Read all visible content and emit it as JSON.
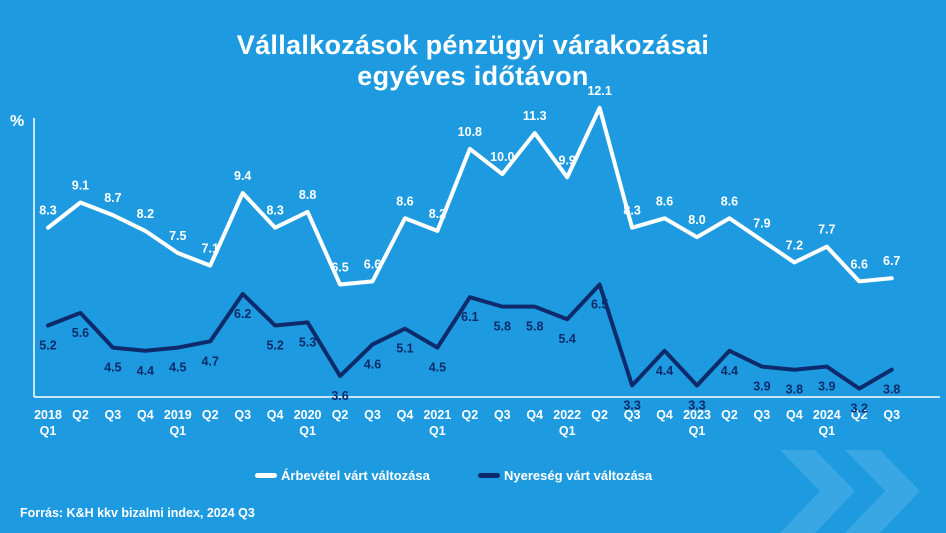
{
  "header": {
    "title_line1": "Vállalkozások pénzügyi várakozásai",
    "title_line2": "egyéves időtávon"
  },
  "source": "Forrás: K&H kkv bizalmi index, 2024 Q3",
  "chart_data": {
    "type": "line",
    "title": "Vállalkozások pénzügyi várakozásai egyéves időtávon",
    "ylabel": "%",
    "grid": false,
    "legend_position": "bottom",
    "x": [
      [
        "2018",
        "Q1"
      ],
      [
        "Q2"
      ],
      [
        "Q3"
      ],
      [
        "Q4"
      ],
      [
        "2019",
        "Q1"
      ],
      [
        "Q2"
      ],
      [
        "Q3"
      ],
      [
        "Q4"
      ],
      [
        "2020",
        "Q1"
      ],
      [
        "Q2"
      ],
      [
        "Q3"
      ],
      [
        "Q4"
      ],
      [
        "2021",
        "Q1"
      ],
      [
        "Q2"
      ],
      [
        "Q3"
      ],
      [
        "Q4"
      ],
      [
        "2022",
        "Q1"
      ],
      [
        "Q2"
      ],
      [
        "Q3"
      ],
      [
        "Q4"
      ],
      [
        "2023",
        "Q1"
      ],
      [
        "Q2"
      ],
      [
        "Q3"
      ],
      [
        "Q4"
      ],
      [
        "2024",
        "Q1"
      ],
      [
        "Q2"
      ],
      [
        "Q3"
      ]
    ],
    "series": [
      {
        "name": "Árbevétel várt változása",
        "color": "#ffffff",
        "values": [
          8.3,
          9.1,
          8.7,
          8.2,
          7.5,
          7.1,
          9.4,
          8.3,
          8.8,
          6.5,
          6.6,
          8.6,
          8.2,
          10.8,
          10.0,
          11.3,
          9.9,
          12.1,
          8.3,
          8.6,
          8.0,
          8.6,
          7.9,
          7.2,
          7.7,
          6.6,
          6.7
        ]
      },
      {
        "name": "Nyereség várt változása",
        "color": "#0d2b6b",
        "values": [
          5.2,
          5.6,
          4.5,
          4.4,
          4.5,
          4.7,
          6.2,
          5.2,
          5.3,
          3.6,
          4.6,
          5.1,
          4.5,
          6.1,
          5.8,
          5.8,
          5.4,
          6.5,
          3.3,
          4.4,
          3.3,
          4.4,
          3.9,
          3.8,
          3.9,
          3.2,
          3.8
        ]
      }
    ]
  }
}
